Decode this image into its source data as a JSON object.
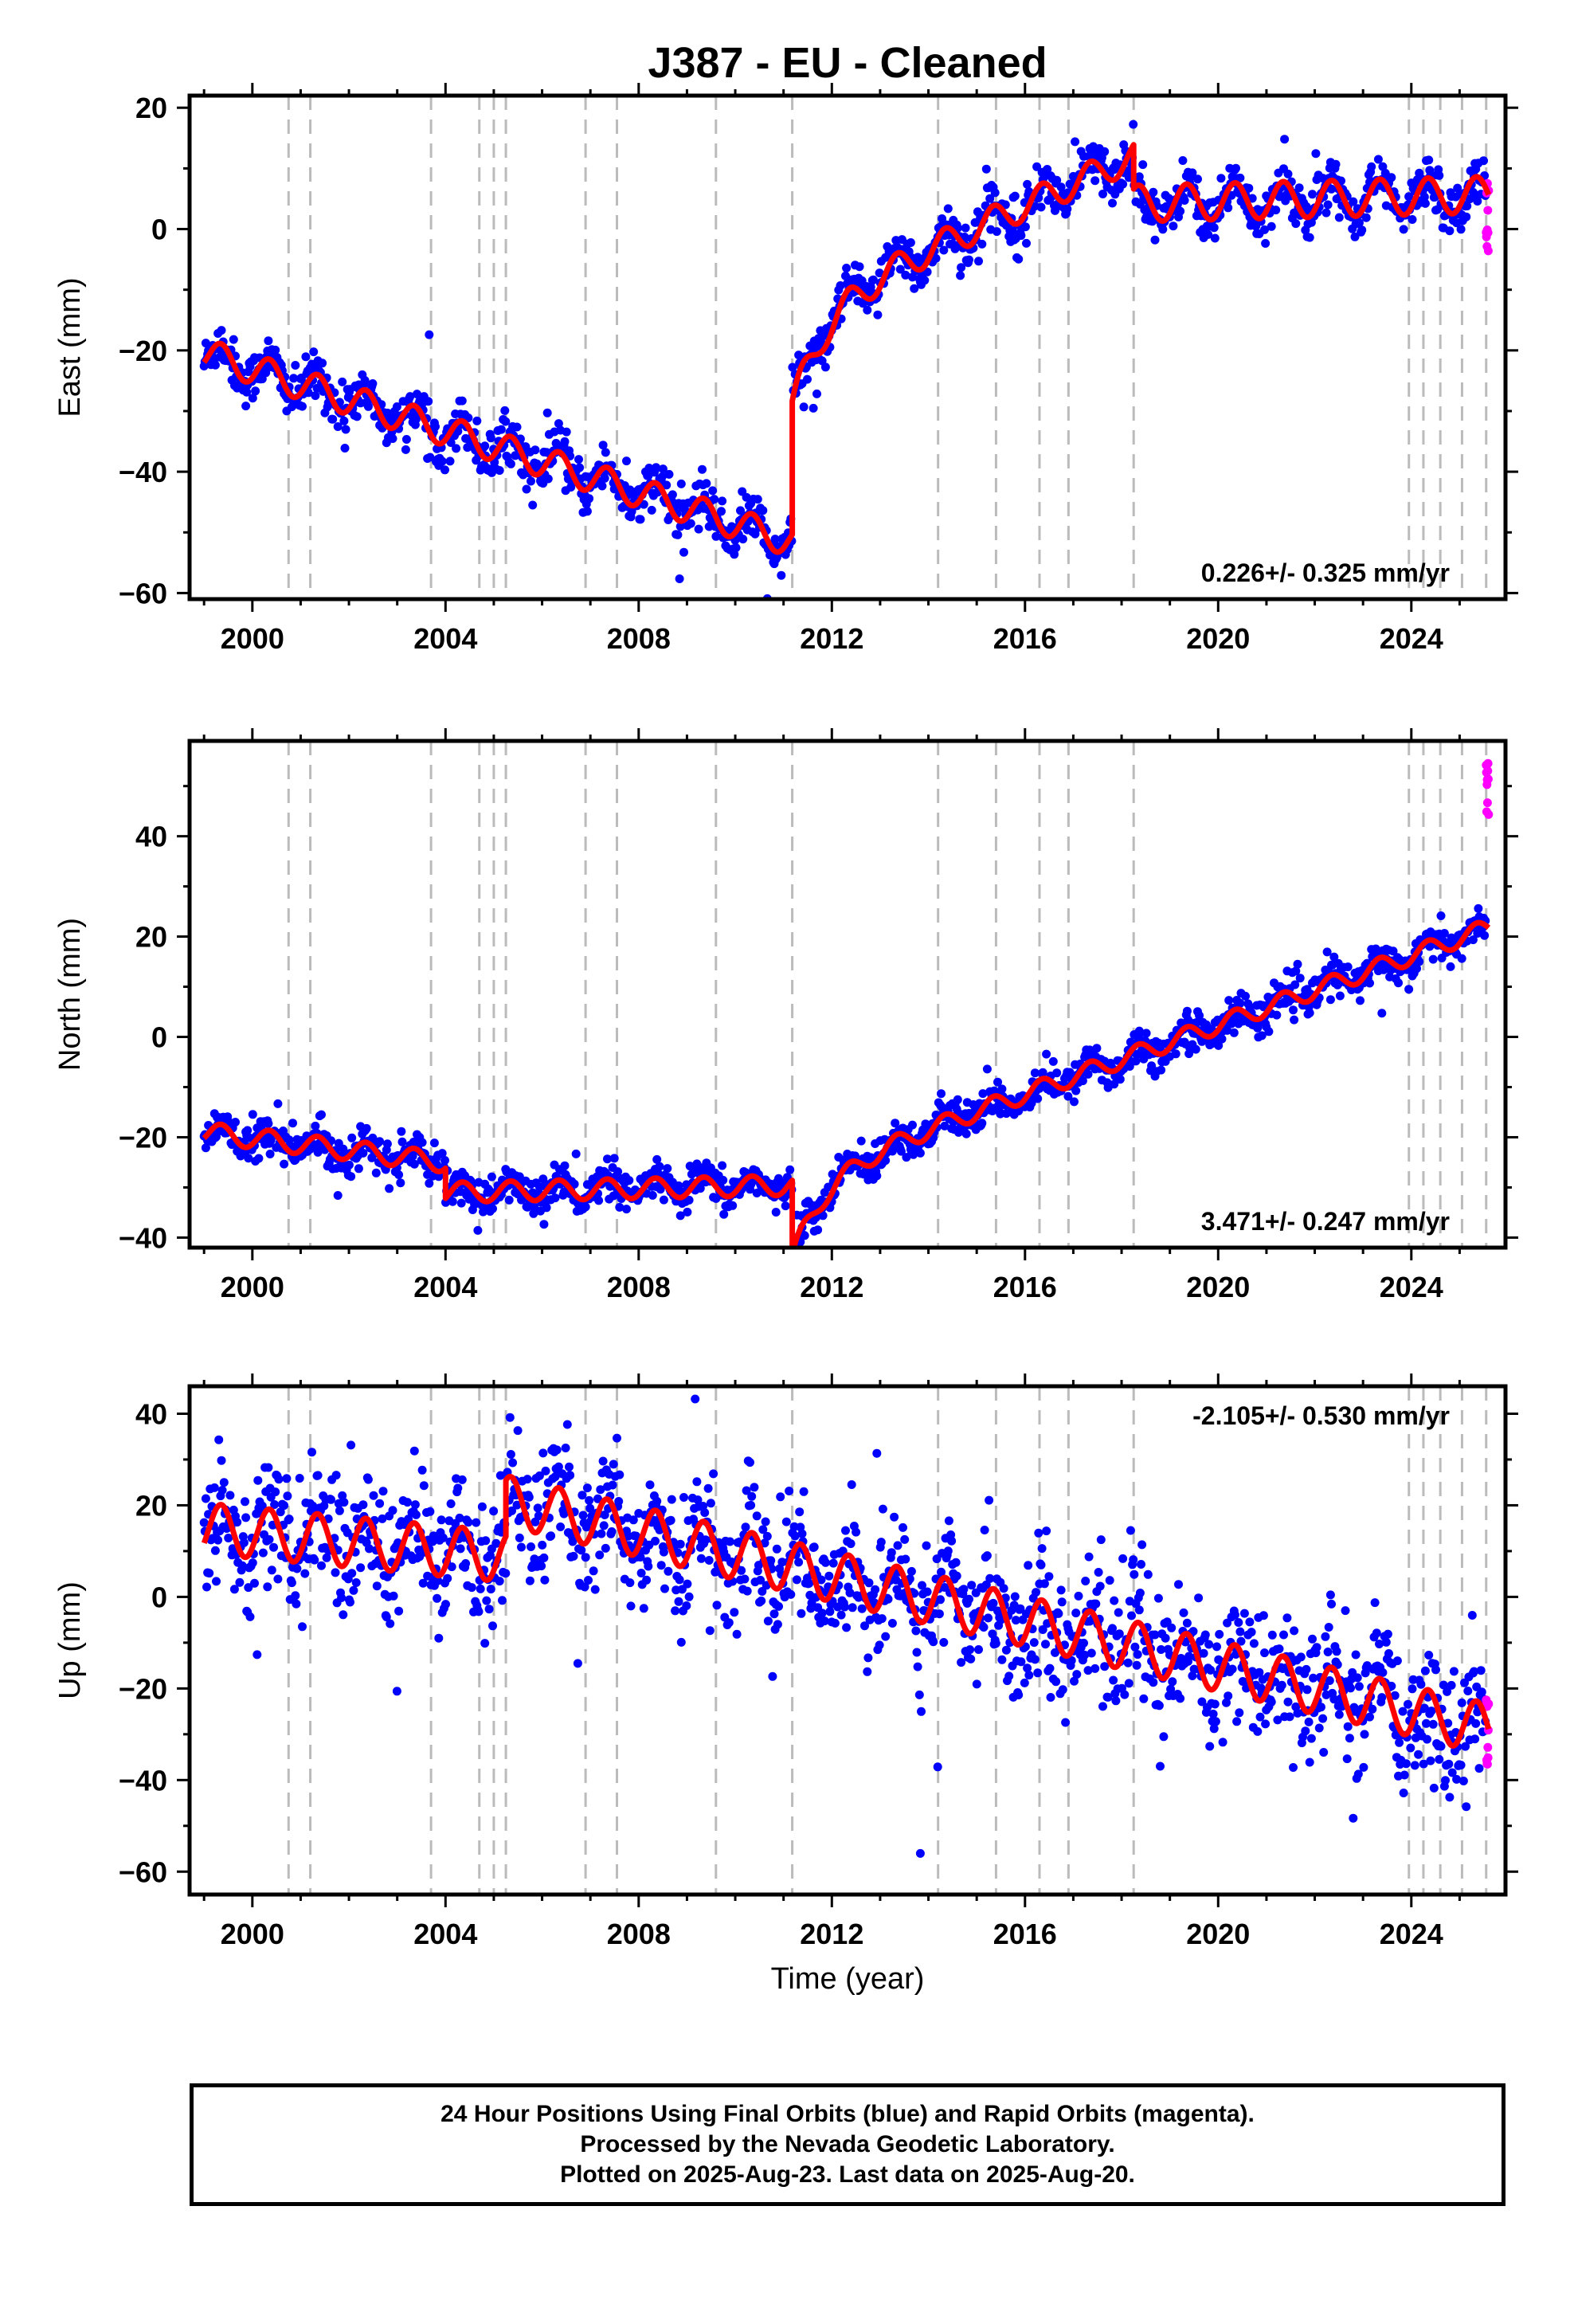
{
  "chart_data": {
    "title": "J387  - EU - Cleaned",
    "xlabel": "Time (year)",
    "type": "scatter",
    "x_range": [
      1998.7,
      2025.95
    ],
    "x_ticks": [
      2000,
      2004,
      2008,
      2012,
      2016,
      2020,
      2024
    ],
    "event_lines": [
      2000.75,
      2001.2,
      2003.7,
      2004.7,
      2005.0,
      2005.25,
      2006.9,
      2007.55,
      2009.6,
      2011.18,
      2014.2,
      2015.4,
      2016.3,
      2016.9,
      2018.25,
      2023.95,
      2024.25,
      2024.6,
      2025.05,
      2025.55
    ],
    "colors": {
      "final": "#0000ff",
      "rapid": "#ff00ff",
      "model": "#ff0000",
      "events": "#bbbbbb"
    },
    "panels": [
      {
        "name": "east",
        "ylabel": "East (mm)",
        "ylim": [
          -61,
          22
        ],
        "yticks": [
          -60,
          -40,
          -20,
          0,
          20
        ],
        "rate_label": "0.226+/- 0.325 mm/yr",
        "rate_position": "bottom-right",
        "model": {
          "segments": [
            {
              "x": [
                1999.0,
                2011.18
              ],
              "start": -20.5,
              "slope": -2.55,
              "amp": 2.5
            },
            {
              "x": [
                2011.18,
                2018.25
              ],
              "start": -13.5,
              "slope": 3.6,
              "amp": 2.4,
              "decay": {
                "amp": -16,
                "tau": 0.7
              }
            },
            {
              "x": [
                2018.25,
                2025.6
              ],
              "start": 4.2,
              "slope": 0.2,
              "amp": 3.0
            }
          ],
          "noise": 2.0
        },
        "rapid": {
          "x": [
            2025.55,
            2025.6
          ],
          "y": [
            -4,
            8
          ]
        }
      },
      {
        "name": "north",
        "ylabel": "North (mm)",
        "ylim": [
          -42,
          59
        ],
        "yticks": [
          -40,
          -20,
          0,
          20,
          40
        ],
        "rate_label": "3.471+/- 0.247 mm/yr",
        "rate_position": "bottom-right",
        "model": {
          "segments": [
            {
              "x": [
                1999.0,
                2004.0
              ],
              "start": -19.0,
              "slope": -1.2,
              "amp": 2.0
            },
            {
              "x": [
                2004.0,
                2011.18
              ],
              "start": -31.0,
              "slope": 0.2,
              "amp": 2.0
            },
            {
              "x": [
                2011.18,
                2025.6
              ],
              "start": -28.0,
              "slope": 3.45,
              "amp": 1.8,
              "decay": {
                "amp": -16,
                "tau": 0.7
              }
            }
          ],
          "noise": 1.8
        },
        "rapid": {
          "x": [
            2025.55,
            2025.6
          ],
          "y": [
            44,
            57
          ]
        }
      },
      {
        "name": "up",
        "ylabel": "Up (mm)",
        "ylim": [
          -65,
          46
        ],
        "yticks": [
          -60,
          -40,
          -20,
          0,
          20,
          40
        ],
        "rate_label": "-2.105+/- 0.530 mm/yr",
        "rate_position": "top-right",
        "model": {
          "segments": [
            {
              "x": [
                1999.0,
                2005.25
              ],
              "start": 15.0,
              "slope": -1.0,
              "amp": 5.5
            },
            {
              "x": [
                2005.25,
                2025.6
              ],
              "start": 21.0,
              "slope": -2.45,
              "amp": 5.5
            }
          ],
          "noise": 7.0
        },
        "rapid": {
          "x": [
            2025.55,
            2025.6
          ],
          "y": [
            -38,
            -20
          ]
        }
      }
    ]
  },
  "footer": {
    "line1": "24 Hour Positions Using Final Orbits (blue) and Rapid Orbits (magenta).",
    "line2": "Processed by the Nevada Geodetic Laboratory.",
    "line3": "Plotted on 2025-Aug-23. Last data on 2025-Aug-20."
  }
}
